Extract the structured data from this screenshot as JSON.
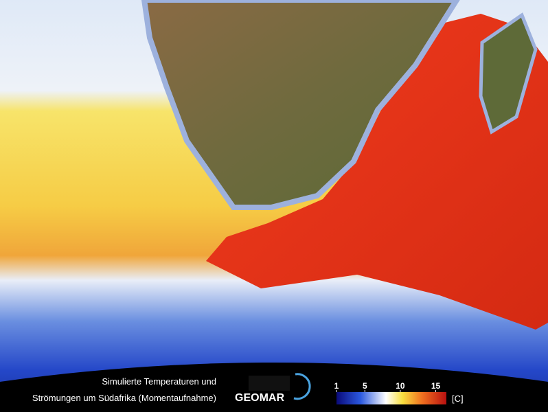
{
  "caption": [
    "Simulierte Temperaturen und",
    "Strömungen um Südafrika (Momentaufnahme)"
  ],
  "logo": "GEOMAR",
  "colorbar": {
    "lim": [
      1,
      16.5
    ],
    "ticks": [
      1,
      5,
      10,
      15
    ],
    "unit": "[C]"
  }
}
